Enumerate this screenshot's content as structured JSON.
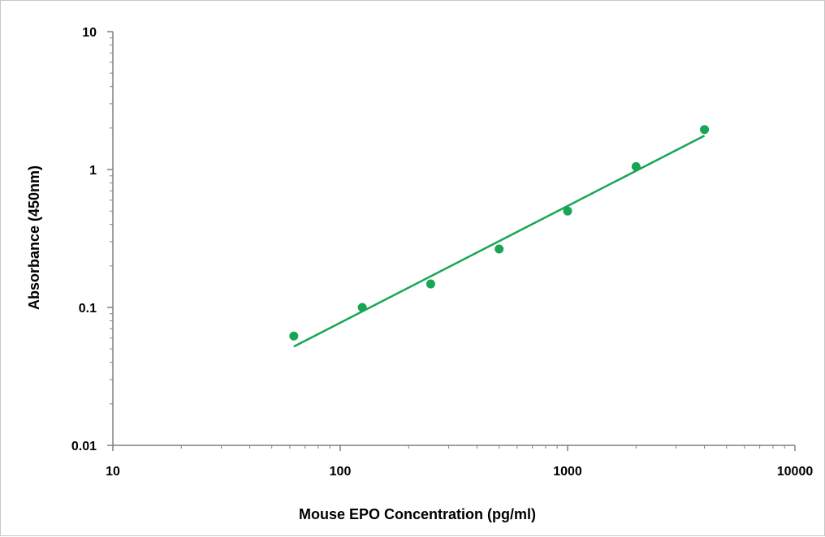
{
  "chart_data": {
    "type": "scatter",
    "title": "",
    "xlabel": "Mouse EPO Concentration (pg/ml)",
    "ylabel": "Absorbance (450nm)",
    "xscale": "log",
    "yscale": "log",
    "xlim": [
      10,
      10000
    ],
    "ylim": [
      0.01,
      10
    ],
    "x_ticks": [
      10,
      100,
      1000,
      10000
    ],
    "x_tick_labels": [
      "10",
      "100",
      "1000",
      "10000"
    ],
    "y_ticks": [
      0.01,
      0.1,
      1,
      10
    ],
    "y_tick_labels": [
      "0.01",
      "0.1",
      "1",
      "10"
    ],
    "grid": false,
    "legend": "none",
    "series": [
      {
        "type": "scatter",
        "color": "#18a656",
        "x": [
          62.5,
          125,
          250,
          500,
          1000,
          2000,
          4000
        ],
        "y": [
          0.062,
          0.1,
          0.148,
          0.265,
          0.5,
          1.05,
          1.95
        ]
      }
    ],
    "trendline": {
      "type": "power",
      "color": "#18a656",
      "x_range": [
        62.5,
        4000
      ],
      "y_range": [
        0.052,
        1.76
      ]
    }
  }
}
